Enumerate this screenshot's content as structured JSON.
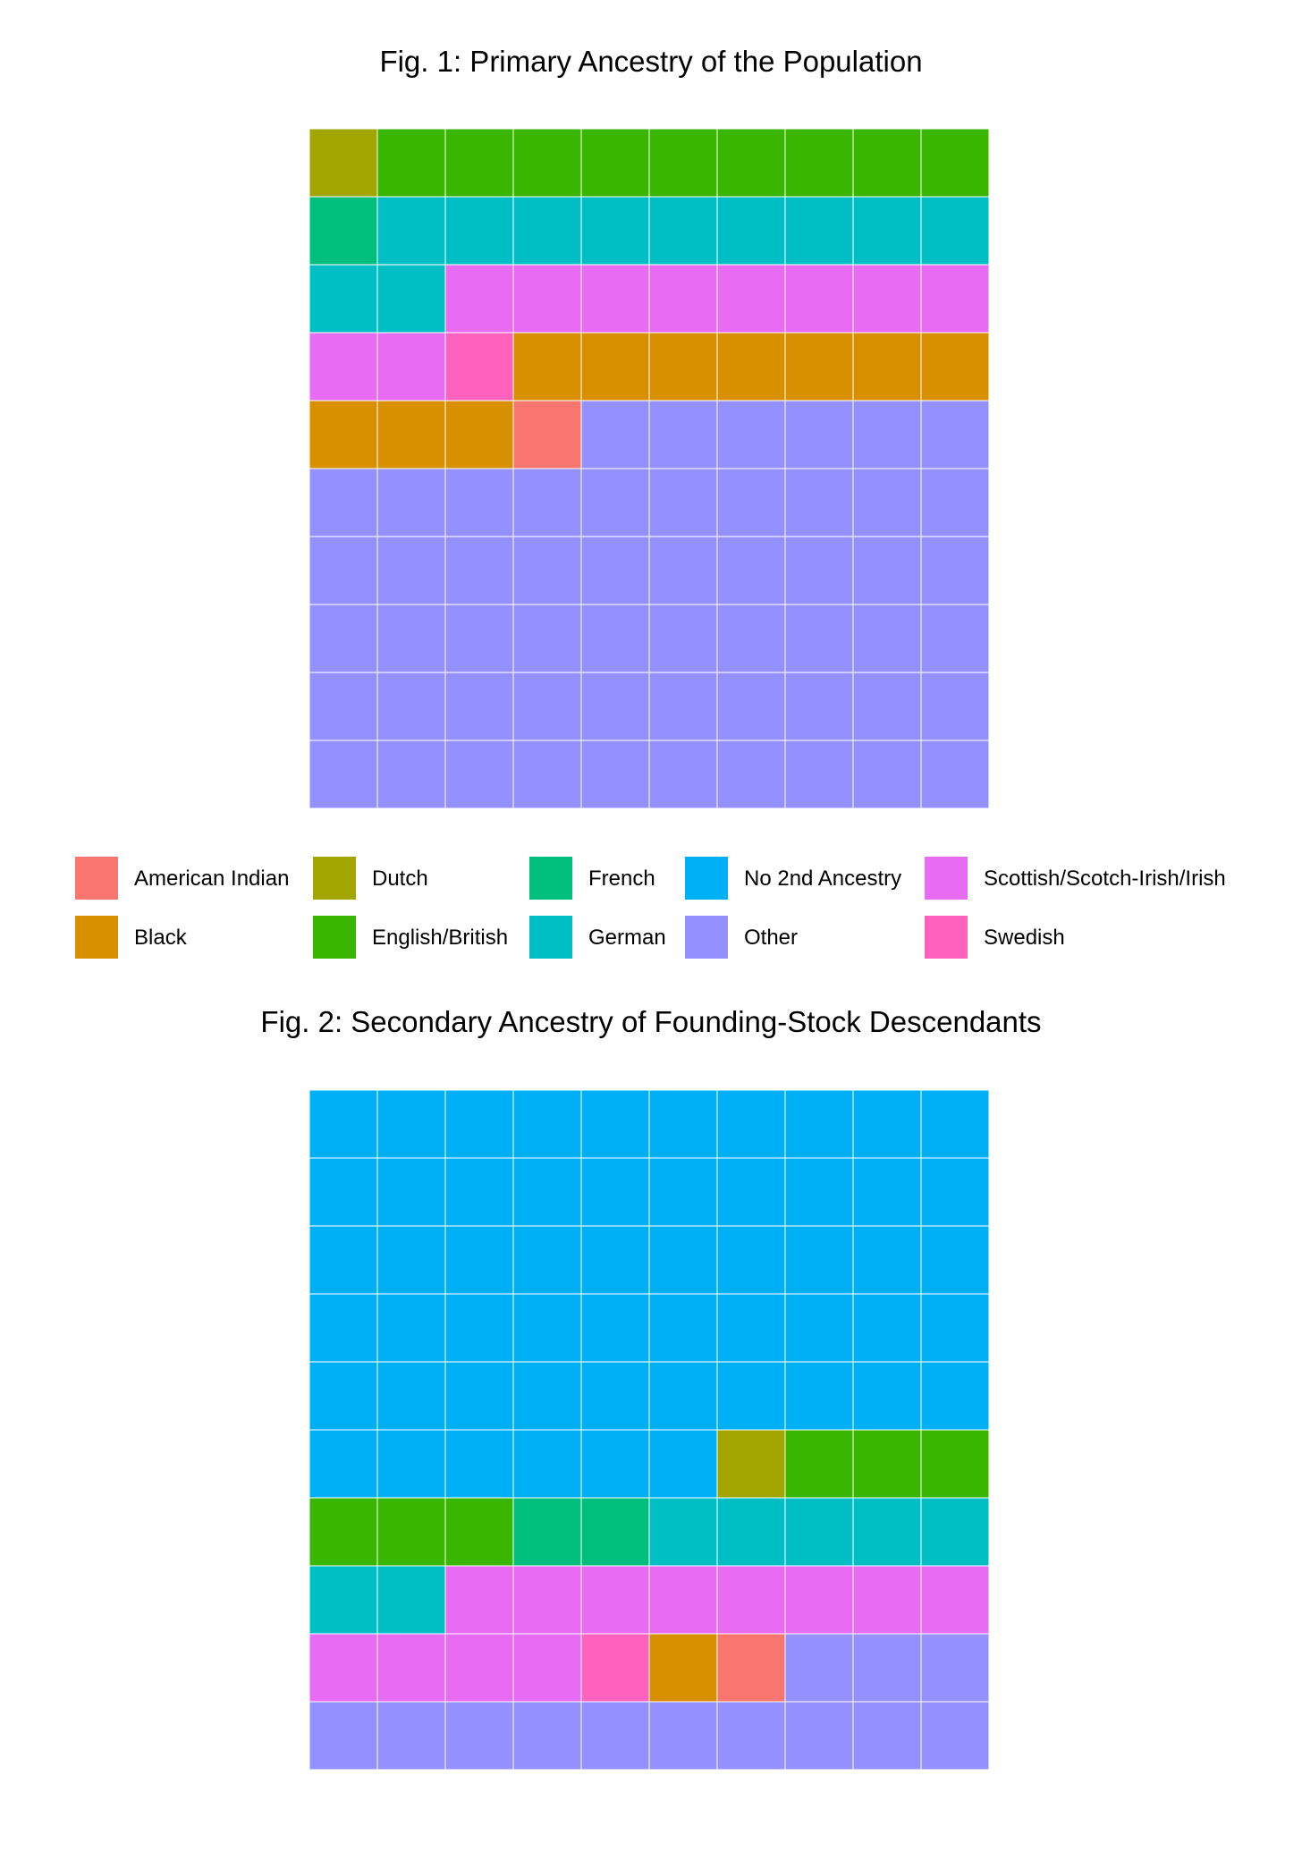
{
  "chart_data": [
    {
      "type": "waffle",
      "title": "Fig. 1: Primary Ancestry of the Population",
      "rows": 10,
      "cols": 10,
      "fill_order": "row-major from top-left",
      "categories": [
        {
          "name": "Dutch",
          "count": 1
        },
        {
          "name": "English/British",
          "count": 9
        },
        {
          "name": "French",
          "count": 1
        },
        {
          "name": "German",
          "count": 11
        },
        {
          "name": "Scottish/Scotch-Irish/Irish",
          "count": 10
        },
        {
          "name": "Swedish",
          "count": 1
        },
        {
          "name": "Black",
          "count": 10
        },
        {
          "name": "American Indian",
          "count": 1
        },
        {
          "name": "Other",
          "count": 56
        }
      ]
    },
    {
      "type": "waffle",
      "title": "Fig. 2: Secondary Ancestry of Founding-Stock Descendants",
      "rows": 10,
      "cols": 10,
      "fill_order": "row-major from top-left",
      "categories": [
        {
          "name": "No 2nd Ancestry",
          "count": 56
        },
        {
          "name": "Dutch",
          "count": 1
        },
        {
          "name": "English/British",
          "count": 6
        },
        {
          "name": "French",
          "count": 2
        },
        {
          "name": "German",
          "count": 7
        },
        {
          "name": "Scottish/Scotch-Irish/Irish",
          "count": 12
        },
        {
          "name": "Swedish",
          "count": 1
        },
        {
          "name": "Black",
          "count": 1
        },
        {
          "name": "American Indian",
          "count": 1
        },
        {
          "name": "Other",
          "count": 13
        }
      ]
    }
  ],
  "legend": {
    "placement": "between figures, 5 columns x 2 rows",
    "items": [
      {
        "label": "American Indian",
        "color": "#F8766D"
      },
      {
        "label": "Black",
        "color": "#D89000"
      },
      {
        "label": "Dutch",
        "color": "#A3A500"
      },
      {
        "label": "English/British",
        "color": "#39B600"
      },
      {
        "label": "French",
        "color": "#00BF7D"
      },
      {
        "label": "German",
        "color": "#00BFC4"
      },
      {
        "label": "No 2nd Ancestry",
        "color": "#00B0F6"
      },
      {
        "label": "Other",
        "color": "#9590FF"
      },
      {
        "label": "Scottish/Scotch-Irish/Irish",
        "color": "#E76BF3"
      },
      {
        "label": "Swedish",
        "color": "#FF62BC"
      }
    ]
  }
}
